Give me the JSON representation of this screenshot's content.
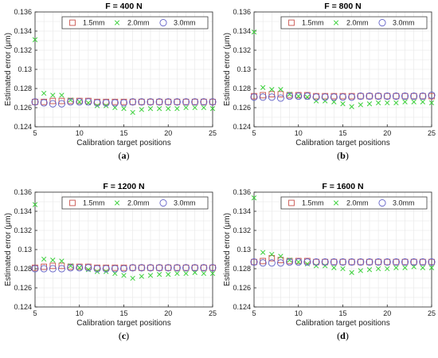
{
  "colors": {
    "s15": "#c8504a",
    "s20": "#3ad03a",
    "s30": "#6060c8",
    "grid": "#e6e6e6",
    "axis": "#262626"
  },
  "chart_data": [
    {
      "type": "scatter",
      "title": "F = 400 N",
      "caption": "a",
      "xlabel": "Calibration target positions",
      "ylabel": "Estimated error (μm)",
      "xlim": [
        5,
        25
      ],
      "ylim": [
        0.124,
        0.136
      ],
      "xticks": [
        5,
        10,
        15,
        20,
        25
      ],
      "yticks": [
        0.124,
        0.126,
        0.128,
        0.13,
        0.132,
        0.134,
        0.136
      ],
      "ytick_labels": [
        "0.124",
        "0.126",
        "0.128",
        "0.13",
        "0.132",
        "0.134",
        "0.136"
      ],
      "grid": true,
      "legend": "top",
      "x": [
        5,
        6,
        7,
        8,
        9,
        10,
        11,
        12,
        13,
        14,
        15,
        16,
        17,
        18,
        19,
        20,
        21,
        22,
        23,
        24,
        25
      ],
      "series": [
        {
          "name": "1.5mm",
          "marker": "square",
          "values": [
            0.1266,
            0.1266,
            0.1267,
            0.1267,
            0.1267,
            0.1267,
            0.1267,
            0.1266,
            0.1266,
            0.1266,
            0.1266,
            0.1266,
            0.1266,
            0.1266,
            0.1266,
            0.1266,
            0.1266,
            0.1266,
            0.1266,
            0.1266,
            0.1266
          ]
        },
        {
          "name": "2.0mm",
          "marker": "x",
          "values": [
            0.1331,
            0.1275,
            0.1273,
            0.1273,
            0.1268,
            0.1266,
            0.1265,
            0.1262,
            0.1262,
            0.126,
            0.1259,
            0.1255,
            0.1258,
            0.1259,
            0.1259,
            0.1259,
            0.1259,
            0.126,
            0.126,
            0.126,
            0.1259
          ]
        },
        {
          "name": "3.0mm",
          "marker": "circle",
          "values": [
            0.1266,
            0.1265,
            0.1264,
            0.1264,
            0.1266,
            0.1266,
            0.1266,
            0.1265,
            0.1265,
            0.1265,
            0.1265,
            0.1266,
            0.1266,
            0.1266,
            0.1266,
            0.1266,
            0.1266,
            0.1266,
            0.1266,
            0.1266,
            0.1266
          ]
        }
      ]
    },
    {
      "type": "scatter",
      "title": "F = 800 N",
      "caption": "b",
      "xlabel": "Calibration target positions",
      "ylabel": "Estimated error (μm)",
      "xlim": [
        5,
        25
      ],
      "ylim": [
        0.124,
        0.136
      ],
      "xticks": [
        5,
        10,
        15,
        20,
        25
      ],
      "yticks": [
        0.124,
        0.126,
        0.128,
        0.13,
        0.132,
        0.134,
        0.136
      ],
      "ytick_labels": [
        "0.124",
        "0.126",
        "0.128",
        "0.13",
        "0.132",
        "0.134",
        "0.136"
      ],
      "grid": true,
      "legend": "top",
      "x": [
        5,
        6,
        7,
        8,
        9,
        10,
        11,
        12,
        13,
        14,
        15,
        16,
        17,
        18,
        19,
        20,
        21,
        22,
        23,
        24,
        25
      ],
      "series": [
        {
          "name": "1.5mm",
          "marker": "square",
          "values": [
            0.1272,
            0.1273,
            0.1274,
            0.1274,
            0.1273,
            0.1273,
            0.1273,
            0.1272,
            0.1272,
            0.1272,
            0.1272,
            0.1272,
            0.1272,
            0.1272,
            0.1272,
            0.1272,
            0.1272,
            0.1272,
            0.1272,
            0.1272,
            0.1272
          ]
        },
        {
          "name": "2.0mm",
          "marker": "x",
          "values": [
            0.1339,
            0.1281,
            0.1279,
            0.1279,
            0.1274,
            0.1272,
            0.1271,
            0.1267,
            0.1267,
            0.1266,
            0.1264,
            0.1261,
            0.1263,
            0.1264,
            0.1265,
            0.1265,
            0.1265,
            0.1266,
            0.1266,
            0.1266,
            0.1265
          ]
        },
        {
          "name": "3.0mm",
          "marker": "circle",
          "values": [
            0.1271,
            0.1271,
            0.1271,
            0.127,
            0.1272,
            0.1272,
            0.1272,
            0.1271,
            0.1271,
            0.1271,
            0.1271,
            0.1271,
            0.1272,
            0.1272,
            0.1272,
            0.1272,
            0.1272,
            0.1272,
            0.1272,
            0.1272,
            0.1273
          ]
        }
      ]
    },
    {
      "type": "scatter",
      "title": "F = 1200 N",
      "caption": "c",
      "xlabel": "Calibration target positions",
      "ylabel": "Estimated error (μm)",
      "xlim": [
        5,
        25
      ],
      "ylim": [
        0.124,
        0.136
      ],
      "xticks": [
        5,
        10,
        15,
        20,
        25
      ],
      "yticks": [
        0.124,
        0.126,
        0.128,
        0.13,
        0.132,
        0.134,
        0.136
      ],
      "ytick_labels": [
        "0.124",
        "0.126",
        "0.128",
        "0.13",
        "0.132",
        "0.134",
        "0.136"
      ],
      "grid": true,
      "legend": "top",
      "x": [
        5,
        6,
        7,
        8,
        9,
        10,
        11,
        12,
        13,
        14,
        15,
        16,
        17,
        18,
        19,
        20,
        21,
        22,
        23,
        24,
        25
      ],
      "series": [
        {
          "name": "1.5mm",
          "marker": "square",
          "values": [
            0.1281,
            0.1282,
            0.1283,
            0.1283,
            0.1282,
            0.1282,
            0.1282,
            0.1281,
            0.1281,
            0.1281,
            0.1281,
            0.1281,
            0.1281,
            0.1281,
            0.1281,
            0.1281,
            0.1281,
            0.1281,
            0.1281,
            0.1281,
            0.1281
          ]
        },
        {
          "name": "2.0mm",
          "marker": "x",
          "values": [
            0.1347,
            0.129,
            0.1289,
            0.1288,
            0.1283,
            0.1281,
            0.1279,
            0.1277,
            0.1277,
            0.1275,
            0.1273,
            0.127,
            0.1272,
            0.1273,
            0.1274,
            0.1274,
            0.1275,
            0.1275,
            0.1276,
            0.1275,
            0.1275
          ]
        },
        {
          "name": "3.0mm",
          "marker": "circle",
          "values": [
            0.128,
            0.128,
            0.128,
            0.128,
            0.1281,
            0.1281,
            0.1281,
            0.128,
            0.128,
            0.128,
            0.128,
            0.1281,
            0.1281,
            0.1281,
            0.1281,
            0.1281,
            0.1281,
            0.1281,
            0.1281,
            0.1281,
            0.1281
          ]
        }
      ]
    },
    {
      "type": "scatter",
      "title": "F = 1600 N",
      "caption": "d",
      "xlabel": "Calibration target positions",
      "ylabel": "Estimated error (μm)",
      "xlim": [
        5,
        25
      ],
      "ylim": [
        0.124,
        0.136
      ],
      "xticks": [
        5,
        10,
        15,
        20,
        25
      ],
      "yticks": [
        0.124,
        0.126,
        0.128,
        0.13,
        0.132,
        0.134,
        0.136
      ],
      "ytick_labels": [
        "0.124",
        "0.126",
        "0.128",
        "0.13",
        "0.132",
        "0.134",
        "0.136"
      ],
      "grid": true,
      "legend": "top",
      "x": [
        5,
        6,
        7,
        8,
        9,
        10,
        11,
        12,
        13,
        14,
        15,
        16,
        17,
        18,
        19,
        20,
        21,
        22,
        23,
        24,
        25
      ],
      "series": [
        {
          "name": "1.5mm",
          "marker": "square",
          "values": [
            0.1287,
            0.1288,
            0.1291,
            0.1289,
            0.1288,
            0.1288,
            0.1288,
            0.1287,
            0.1287,
            0.1287,
            0.1287,
            0.1287,
            0.1287,
            0.1287,
            0.1287,
            0.1287,
            0.1287,
            0.1287,
            0.1287,
            0.1287,
            0.1287
          ]
        },
        {
          "name": "2.0mm",
          "marker": "x",
          "values": [
            0.1354,
            0.1297,
            0.1295,
            0.1293,
            0.1289,
            0.1287,
            0.1285,
            0.1283,
            0.1283,
            0.1281,
            0.128,
            0.1276,
            0.1278,
            0.1279,
            0.128,
            0.128,
            0.1281,
            0.1281,
            0.1282,
            0.1281,
            0.1281
          ]
        },
        {
          "name": "3.0mm",
          "marker": "circle",
          "values": [
            0.1287,
            0.1286,
            0.1286,
            0.1286,
            0.1287,
            0.1287,
            0.1287,
            0.1287,
            0.1287,
            0.1287,
            0.1287,
            0.1287,
            0.1287,
            0.1287,
            0.1287,
            0.1287,
            0.1287,
            0.1287,
            0.1287,
            0.1287,
            0.1287
          ]
        }
      ]
    }
  ]
}
